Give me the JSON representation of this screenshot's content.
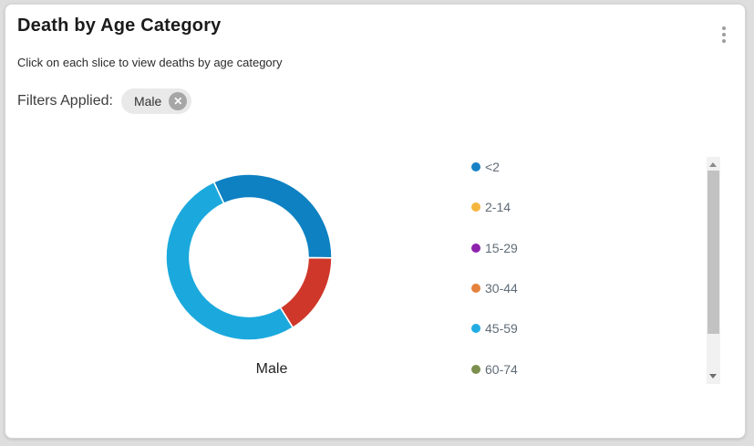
{
  "card": {
    "title": "Death by Age Category",
    "subtitle": "Click on each slice to view deaths by age category",
    "filters_label": "Filters Applied:",
    "filter_chip": {
      "label": "Male",
      "close_icon": "circle-x-icon"
    },
    "menu_icon": "kebab-menu-icon"
  },
  "chart_data": {
    "type": "pie",
    "subtype": "donut",
    "center_label": "Male",
    "inner_radius_ratio": 0.715,
    "slices": [
      {
        "color": "#0d81c2",
        "start_deg": 335,
        "end_deg": 450.5,
        "share_pct": 32.1
      },
      {
        "color": "#cf372a",
        "start_deg": 90.5,
        "end_deg": 148,
        "share_pct": 16.0
      },
      {
        "color": "#1ba9dd",
        "start_deg": 148,
        "end_deg": 335,
        "share_pct": 51.9
      }
    ],
    "legend": [
      {
        "label": "<2",
        "color": "#1782c5"
      },
      {
        "label": "2-14",
        "color": "#f5b63e"
      },
      {
        "label": "15-29",
        "color": "#8e22ad"
      },
      {
        "label": "30-44",
        "color": "#e5813c"
      },
      {
        "label": "45-59",
        "color": "#22ace4"
      },
      {
        "label": "60-74",
        "color": "#7d8f4e"
      }
    ],
    "legend_position": "right",
    "legend_scrollable": true
  },
  "colors": {
    "page_background": "#dedede",
    "card_background": "#ffffff",
    "chip_background": "#e9e9e9",
    "chip_close_background": "#a6a6a6",
    "scrollbar_track": "#f1f1f1",
    "scrollbar_thumb": "#c2c2c2",
    "slice_separator": "#ffffff"
  },
  "close_glyph": "✕"
}
